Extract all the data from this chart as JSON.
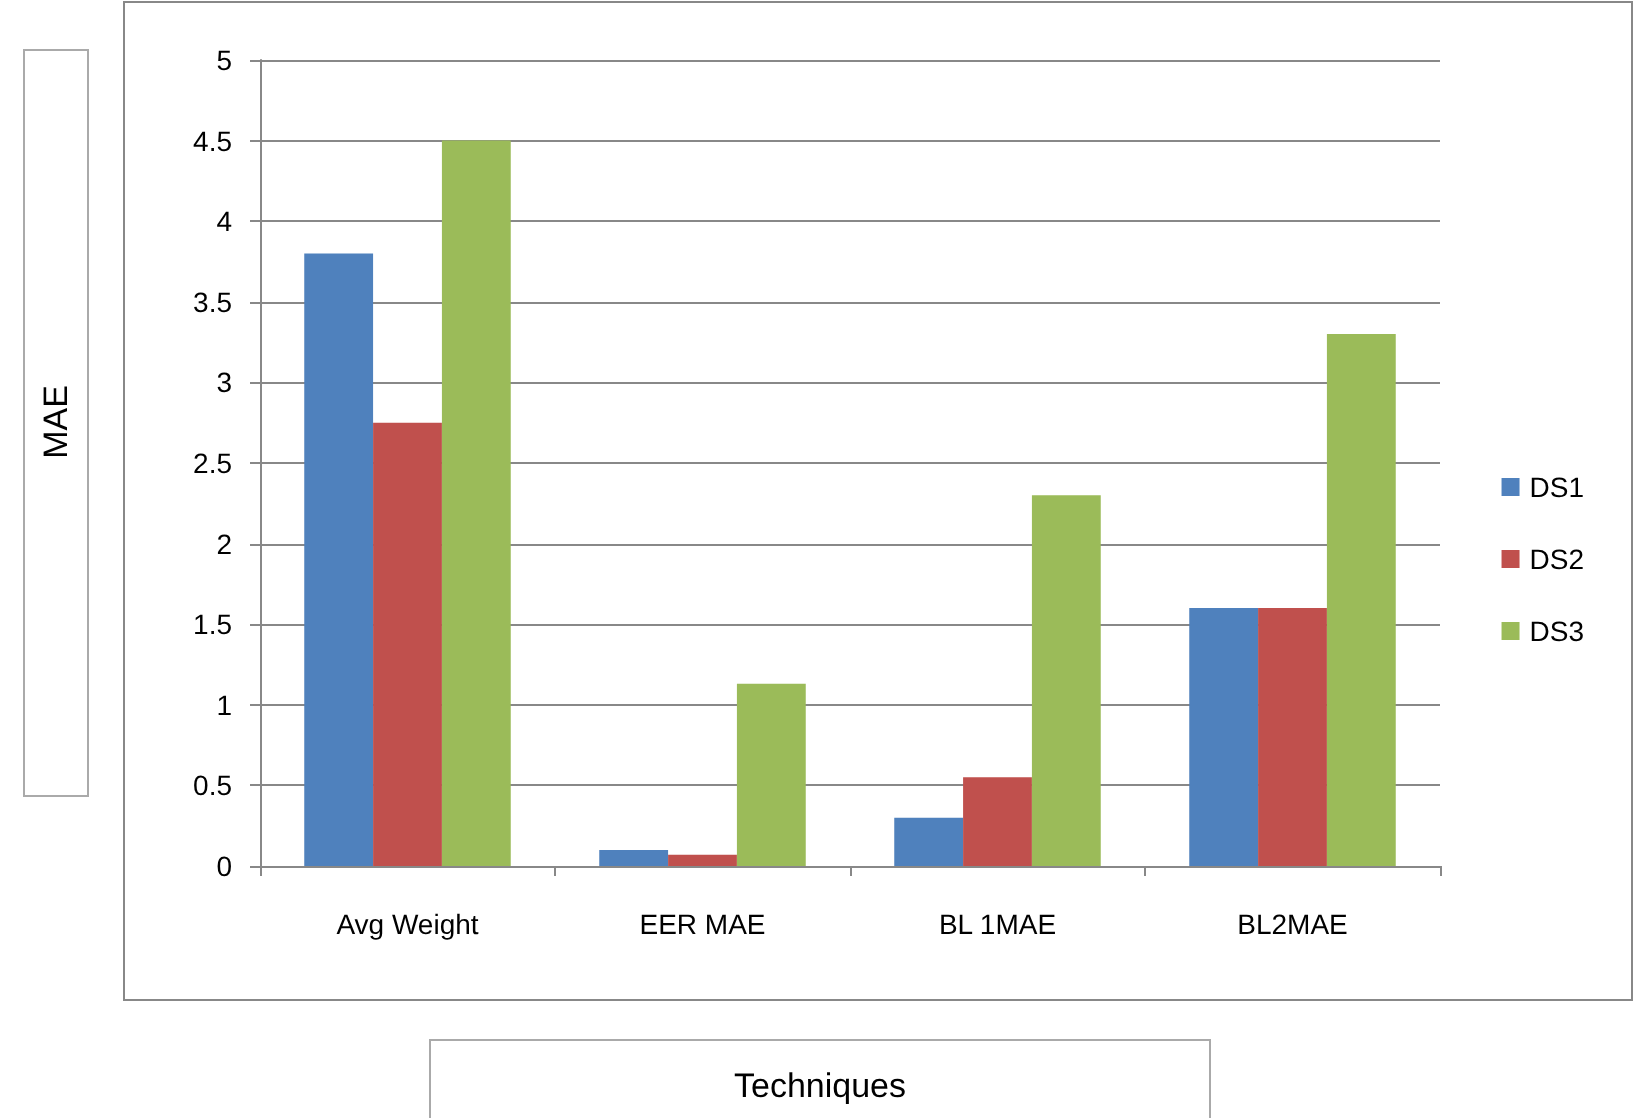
{
  "chart_data": {
    "type": "bar",
    "xlabel": "Techniques",
    "ylabel": "MAE",
    "categories": [
      "Avg Weight",
      "EER MAE",
      "BL 1MAE",
      "BL2MAE"
    ],
    "series": [
      {
        "name": "DS1",
        "color": "#4f81bd",
        "values": [
          3.8,
          0.1,
          0.3,
          1.6
        ]
      },
      {
        "name": "DS2",
        "color": "#c0504d",
        "values": [
          2.75,
          0.07,
          0.55,
          1.6
        ]
      },
      {
        "name": "DS3",
        "color": "#9bbb59",
        "values": [
          4.5,
          1.13,
          2.3,
          3.3
        ]
      }
    ],
    "ylim": [
      0,
      5
    ],
    "yticks": [
      0,
      0.5,
      1,
      1.5,
      2,
      2.5,
      3,
      3.5,
      4,
      4.5,
      5
    ],
    "grid": "y",
    "legend": "right"
  }
}
